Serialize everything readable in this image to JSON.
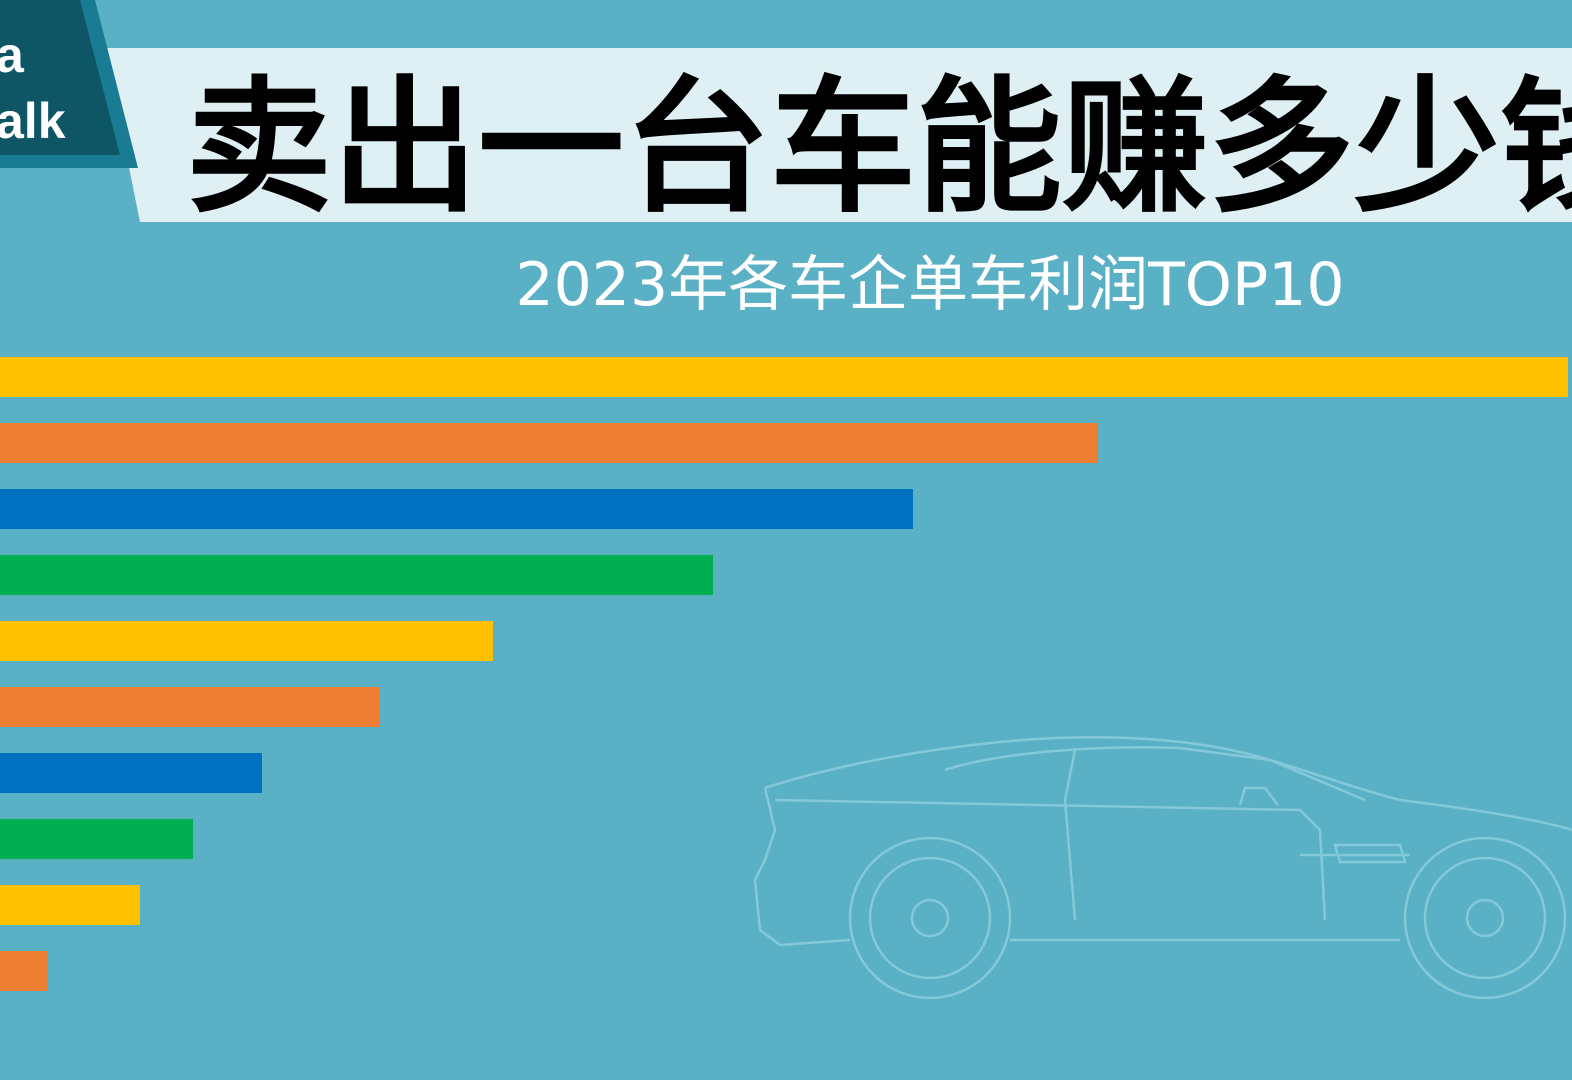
{
  "logo": {
    "lines": [
      "a",
      "alk"
    ]
  },
  "chart_data": {
    "type": "bar",
    "orientation": "horizontal",
    "title": "卖出一台车能赚多少钱",
    "subtitle": "2023年各车企单车利润TOP10",
    "values": [
      1568,
      1098,
      913,
      713,
      493,
      380,
      262,
      193,
      140,
      47
    ],
    "colors": [
      "#FFC000",
      "#ED7D31",
      "#0070C0",
      "#00B050",
      "#FFC000",
      "#ED7D31",
      "#0070C0",
      "#00B050",
      "#FFC000",
      "#ED7D31"
    ],
    "xlim": [
      0,
      1568
    ]
  }
}
